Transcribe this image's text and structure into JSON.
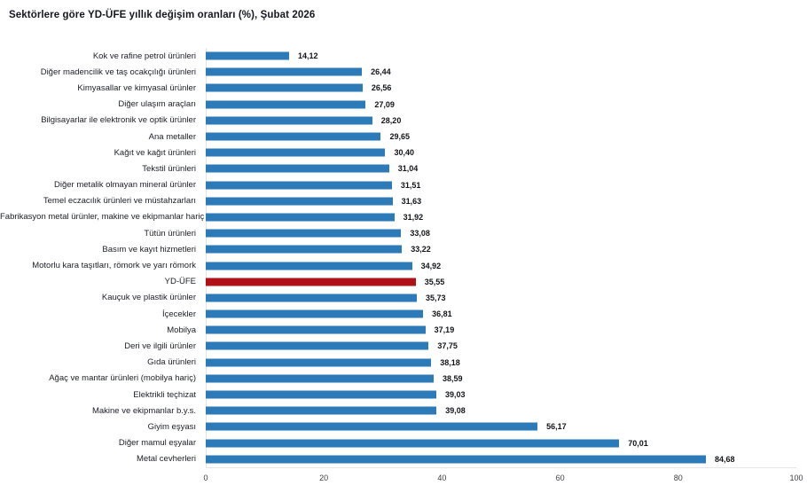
{
  "title": "Sektörlere göre YD-ÜFE yıllık değişim oranları (%), Şubat 2026",
  "colors": {
    "bar": "#2d7ab9",
    "highlight": "#b01116",
    "axis_line": "#e6e6e9",
    "text": "#1b1e26"
  },
  "chart_data": {
    "type": "bar",
    "orientation": "horizontal",
    "title": "Sektörlere göre YD-ÜFE yıllık değişim oranları (%), Şubat 2026",
    "xlabel": "",
    "ylabel": "",
    "xlim": [
      0,
      100
    ],
    "xticks": [
      0,
      20,
      40,
      60,
      80,
      100
    ],
    "grid": false,
    "legend": "none",
    "highlight_category": "YD-ÜFE",
    "value_decimal_separator": ",",
    "rows": [
      {
        "label": "Kok ve rafine petrol ürünleri",
        "value": 14.12,
        "display": "14,12"
      },
      {
        "label": "Diğer madencilik ve taş ocakçılığı ürünleri",
        "value": 26.44,
        "display": "26,44"
      },
      {
        "label": "Kimyasallar ve kimyasal ürünler",
        "value": 26.56,
        "display": "26,56"
      },
      {
        "label": "Diğer ulaşım araçları",
        "value": 27.09,
        "display": "27,09"
      },
      {
        "label": "Bilgisayarlar ile elektronik ve optik ürünler",
        "value": 28.2,
        "display": "28,20"
      },
      {
        "label": "Ana metaller",
        "value": 29.65,
        "display": "29,65"
      },
      {
        "label": "Kağıt ve kağıt ürünleri",
        "value": 30.4,
        "display": "30,40"
      },
      {
        "label": "Tekstil ürünleri",
        "value": 31.04,
        "display": "31,04"
      },
      {
        "label": "Diğer metalik olmayan mineral ürünler",
        "value": 31.51,
        "display": "31,51"
      },
      {
        "label": "Temel eczacılık ürünleri ve müstahzarları",
        "value": 31.63,
        "display": "31,63"
      },
      {
        "label": "Fabrikasyon metal ürünler, makine ve ekipmanlar hariç",
        "value": 31.92,
        "display": "31,92"
      },
      {
        "label": "Tütün ürünleri",
        "value": 33.08,
        "display": "33,08"
      },
      {
        "label": "Basım ve kayıt hizmetleri",
        "value": 33.22,
        "display": "33,22"
      },
      {
        "label": "Motorlu kara taşıtları, römork ve yarı römork",
        "value": 34.92,
        "display": "34,92"
      },
      {
        "label": "YD-ÜFE",
        "value": 35.55,
        "display": "35,55"
      },
      {
        "label": "Kauçuk ve plastik ürünler",
        "value": 35.73,
        "display": "35,73"
      },
      {
        "label": "İçecekler",
        "value": 36.81,
        "display": "36,81"
      },
      {
        "label": "Mobilya",
        "value": 37.19,
        "display": "37,19"
      },
      {
        "label": "Deri ve ilgili ürünler",
        "value": 37.75,
        "display": "37,75"
      },
      {
        "label": "Gıda ürünleri",
        "value": 38.18,
        "display": "38,18"
      },
      {
        "label": "Ağaç ve mantar ürünleri (mobilya hariç)",
        "value": 38.59,
        "display": "38,59"
      },
      {
        "label": "Elektrikli teçhizat",
        "value": 39.03,
        "display": "39,03"
      },
      {
        "label": "Makine ve ekipmanlar b.y.s.",
        "value": 39.08,
        "display": "39,08"
      },
      {
        "label": "Giyim eşyası",
        "value": 56.17,
        "display": "56,17"
      },
      {
        "label": "Diğer mamul eşyalar",
        "value": 70.01,
        "display": "70,01"
      },
      {
        "label": "Metal cevherleri",
        "value": 84.68,
        "display": "84,68"
      }
    ]
  }
}
